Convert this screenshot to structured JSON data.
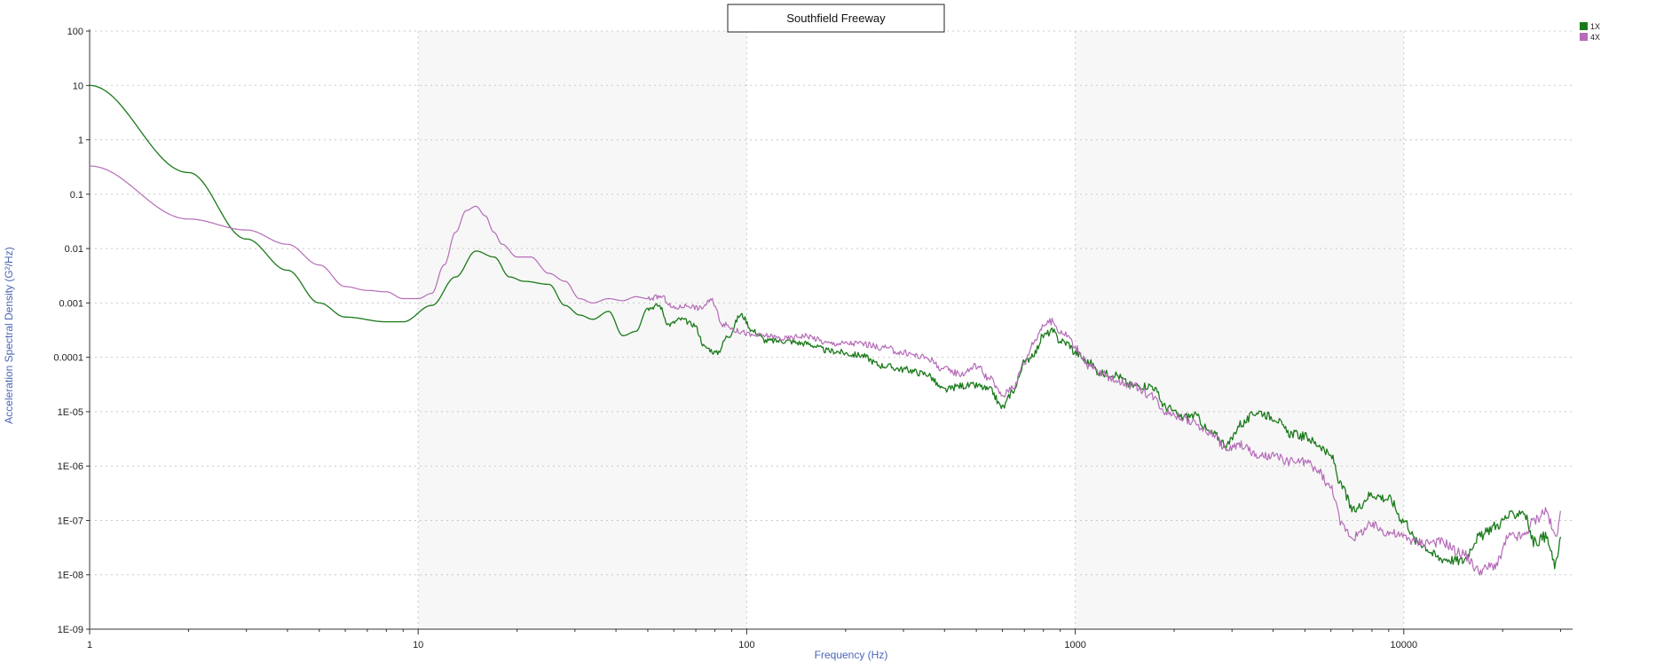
{
  "chart_data": {
    "type": "line",
    "title": "Southfield Freeway",
    "xlabel": "Frequency (Hz)",
    "ylabel": "Acceleration Spectral Density (G²/Hz)",
    "x_scale": "log",
    "y_scale": "log",
    "xlim": [
      1,
      30000
    ],
    "ylim": [
      1e-09,
      100
    ],
    "x_ticks": [
      {
        "value": 1,
        "label": "1"
      },
      {
        "value": 10,
        "label": "10"
      },
      {
        "value": 100,
        "label": "100"
      },
      {
        "value": 1000,
        "label": "1000"
      },
      {
        "value": 10000,
        "label": "10000"
      }
    ],
    "y_ticks": [
      {
        "value": 100,
        "label": "100"
      },
      {
        "value": 10,
        "label": "10"
      },
      {
        "value": 1,
        "label": "1"
      },
      {
        "value": 0.1,
        "label": "0.1"
      },
      {
        "value": 0.01,
        "label": "0.01"
      },
      {
        "value": 0.001,
        "label": "0.001"
      },
      {
        "value": 0.0001,
        "label": "0.0001"
      },
      {
        "value": 1e-05,
        "label": "1E-05"
      },
      {
        "value": 1e-06,
        "label": "1E-06"
      },
      {
        "value": 1e-07,
        "label": "1E-07"
      },
      {
        "value": 1e-08,
        "label": "1E-08"
      },
      {
        "value": 1e-09,
        "label": "1E-09"
      }
    ],
    "grid": true,
    "shaded_decades": [
      [
        10,
        100
      ],
      [
        1000,
        10000
      ]
    ],
    "legend_position": "top-right",
    "series": [
      {
        "name": "1X",
        "color": "#1a7a1a",
        "x": [
          1,
          2,
          3,
          4,
          5,
          6,
          8,
          9,
          11,
          13,
          15,
          17,
          19,
          21,
          25,
          28,
          31,
          34,
          38,
          42,
          46,
          50,
          54,
          58,
          63,
          69,
          75,
          81,
          88,
          96,
          105,
          115,
          130,
          150,
          180,
          220,
          260,
          300,
          350,
          400,
          450,
          500,
          550,
          600,
          650,
          700,
          750,
          800,
          850,
          900,
          950,
          1000,
          1100,
          1200,
          1300,
          1500,
          1700,
          1900,
          2100,
          2300,
          2600,
          2900,
          3200,
          3600,
          4000,
          4500,
          5000,
          5500,
          6000,
          6500,
          7000,
          8000,
          9000,
          10000,
          11000,
          13000,
          15000,
          17000,
          19000,
          21000,
          23000,
          25000,
          27000,
          29000,
          30000
        ],
        "y": [
          10,
          0.25,
          0.015,
          0.004,
          0.001,
          0.00055,
          0.00045,
          0.00045,
          0.0009,
          0.003,
          0.009,
          0.007,
          0.003,
          0.0025,
          0.0022,
          0.0009,
          0.0006,
          0.0005,
          0.0007,
          0.00025,
          0.0003,
          0.0008,
          0.0009,
          0.0004,
          0.0005,
          0.0004,
          0.00015,
          0.00012,
          0.00025,
          0.0006,
          0.0003,
          0.0002,
          0.0002,
          0.00018,
          0.00013,
          0.00011,
          7e-05,
          6e-05,
          5e-05,
          2.5e-05,
          3e-05,
          3e-05,
          2.5e-05,
          1.2e-05,
          2.5e-05,
          8e-05,
          0.00012,
          0.00025,
          0.0003,
          0.0002,
          0.00018,
          0.00012,
          8e-05,
          5e-05,
          5e-05,
          3e-05,
          3e-05,
          1.2e-05,
          8e-06,
          8.5e-06,
          4e-06,
          2.5e-06,
          6e-06,
          1e-05,
          8e-06,
          4e-06,
          3.5e-06,
          2.5e-06,
          1.5e-06,
          4e-07,
          1.5e-07,
          3e-07,
          2.5e-07,
          1e-07,
          4e-08,
          2e-08,
          1.8e-08,
          5e-08,
          8e-08,
          1.2e-07,
          1.5e-07,
          4e-08,
          5e-08,
          1.5e-08,
          5e-08
        ]
      },
      {
        "name": "4X",
        "color": "#b56cb8",
        "x": [
          1,
          2,
          3,
          4,
          5,
          6,
          7,
          8,
          9,
          10,
          11,
          12,
          13,
          14,
          15,
          16,
          17,
          18,
          20,
          22,
          25,
          28,
          31,
          34,
          38,
          42,
          46,
          50,
          55,
          60,
          66,
          72,
          78,
          85,
          95,
          105,
          115,
          130,
          150,
          180,
          220,
          260,
          300,
          350,
          400,
          450,
          500,
          550,
          600,
          650,
          700,
          750,
          800,
          850,
          900,
          950,
          1000,
          1100,
          1200,
          1300,
          1500,
          1700,
          1900,
          2100,
          2300,
          2600,
          2900,
          3200,
          3600,
          4000,
          4500,
          5000,
          5500,
          6000,
          6500,
          7000,
          8000,
          9000,
          10000,
          11000,
          13000,
          15000,
          17000,
          19000,
          21000,
          23000,
          25000,
          27000,
          29000,
          30000
        ],
        "y": [
          0.33,
          0.035,
          0.022,
          0.012,
          0.005,
          0.002,
          0.0017,
          0.0016,
          0.0012,
          0.0012,
          0.0015,
          0.005,
          0.02,
          0.05,
          0.06,
          0.04,
          0.02,
          0.012,
          0.007,
          0.007,
          0.0035,
          0.0025,
          0.0012,
          0.001,
          0.0012,
          0.0011,
          0.0013,
          0.0012,
          0.0013,
          0.0008,
          0.0009,
          0.0008,
          0.0011,
          0.0004,
          0.0003,
          0.00025,
          0.00025,
          0.00022,
          0.00025,
          0.00018,
          0.00018,
          0.00015,
          0.00012,
          0.0001,
          6e-05,
          5e-05,
          7e-05,
          4e-05,
          2e-05,
          3e-05,
          8e-05,
          0.0002,
          0.0004,
          0.00045,
          0.0003,
          0.00025,
          0.00015,
          7e-05,
          5e-05,
          4e-05,
          3e-05,
          2e-05,
          1e-05,
          8e-06,
          6e-06,
          4e-06,
          2e-06,
          2.5e-06,
          1.5e-06,
          1.5e-06,
          1.2e-06,
          1.2e-06,
          8e-07,
          4e-07,
          8e-08,
          5e-08,
          8e-08,
          6e-08,
          5e-08,
          4e-08,
          4e-08,
          2.5e-08,
          1.2e-08,
          1.5e-08,
          5e-08,
          5e-08,
          1e-07,
          1.5e-07,
          5e-08,
          1.5e-07
        ]
      }
    ]
  }
}
